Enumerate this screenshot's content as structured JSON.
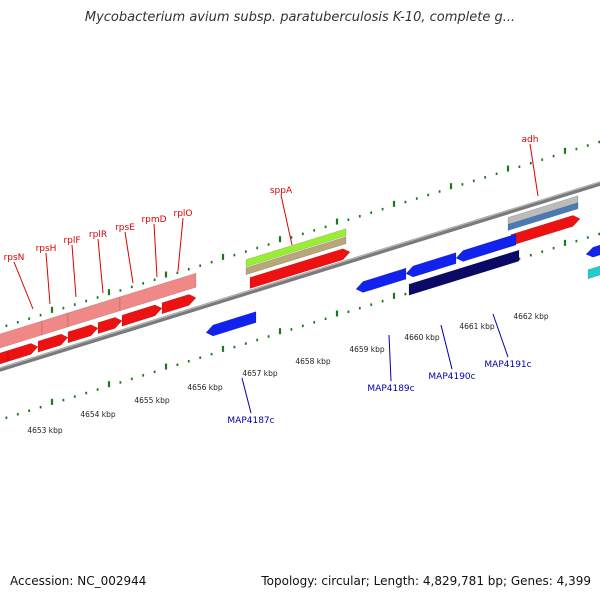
{
  "title": "Mycobacterium avium subsp. paratuberculosis K-10, complete g...",
  "footer": {
    "accession": "Accession: NC_002944",
    "summary": "Topology: circular; Length: 4,829,781 bp; Genes: 4,399"
  },
  "colors": {
    "top_label": "#dd0000",
    "bottom_label": "#0000aa",
    "tick": "#1a7a1a",
    "backbone": "#7a7a7a",
    "cds_red": "#ee1111",
    "rrna_pink": "#f08888",
    "cds_blue": "#1122ee",
    "cds_navy": "#0a0a66",
    "gene_green": "#99ee33",
    "gene_tan": "#b8a878",
    "gene_grey": "#bbbbbb",
    "gene_steel": "#4a7ab8",
    "gene_cyan": "#22cccc"
  },
  "kbp_labels": [
    "4653 kbp",
    "4654 kbp",
    "4655 kbp",
    "4656 kbp",
    "4657 kbp",
    "4658 kbp",
    "4659 kbp",
    "4660 kbp",
    "4661 kbp",
    "4662 kbp"
  ],
  "top_genes": [
    "rpsN",
    "rpsH",
    "rplF",
    "rplR",
    "rpsE",
    "rpmD",
    "rplO",
    "sppA",
    "adh"
  ],
  "bottom_genes": [
    "MAP4187c",
    "MAP4189c",
    "MAP4190c",
    "MAP4191c"
  ]
}
